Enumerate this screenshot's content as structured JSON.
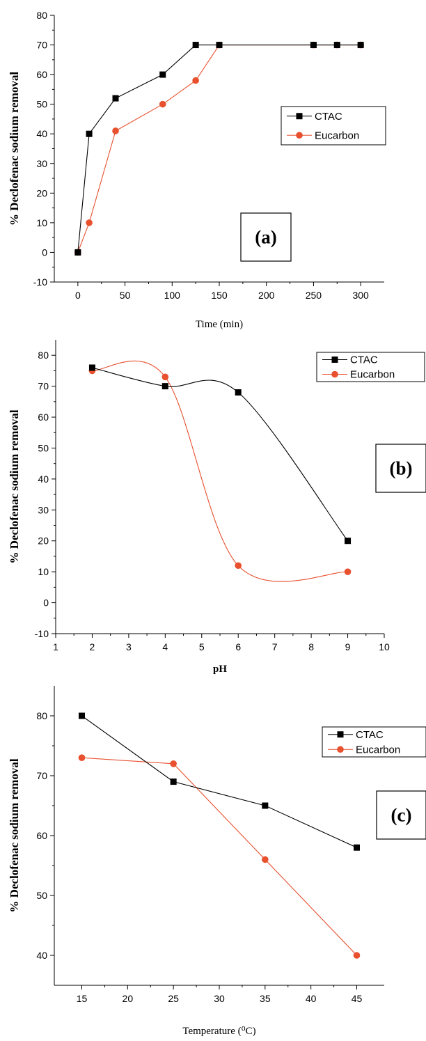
{
  "chart_data": [
    {
      "type": "line",
      "panel_label": "(a)",
      "xlabel": "Time (min)",
      "ylabel": "% Declofenac sodium removal",
      "xlim": [
        -25,
        325
      ],
      "ylim": [
        -10,
        80
      ],
      "xticks": [
        0,
        50,
        100,
        150,
        200,
        250,
        300
      ],
      "yticks": [
        -10,
        0,
        10,
        20,
        30,
        40,
        50,
        60,
        70,
        80
      ],
      "legend_position": "center-right",
      "grid": false,
      "series": [
        {
          "name": "CTAC",
          "marker": "square",
          "color": "#000000",
          "smooth": false,
          "x": [
            0,
            12,
            40,
            90,
            125,
            150,
            250,
            275,
            300
          ],
          "y": [
            0,
            40,
            52,
            60,
            70,
            70,
            70,
            70,
            70
          ]
        },
        {
          "name": "Eucarbon",
          "marker": "circle",
          "color": "#e8502e",
          "smooth": false,
          "x": [
            0,
            12,
            40,
            90,
            125,
            150,
            250,
            275,
            300
          ],
          "y": [
            0,
            10,
            41,
            50,
            58,
            70,
            70,
            70,
            70
          ]
        }
      ]
    },
    {
      "type": "line",
      "panel_label": "(b)",
      "xlabel": "pH",
      "ylabel": "% Declofenac sodium removal",
      "xlim": [
        1,
        10
      ],
      "ylim": [
        -10,
        85
      ],
      "xticks": [
        1,
        2,
        3,
        4,
        5,
        6,
        7,
        8,
        9,
        10
      ],
      "yticks": [
        -10,
        0,
        10,
        20,
        30,
        40,
        50,
        60,
        70,
        80
      ],
      "legend_position": "top-right",
      "grid": false,
      "series": [
        {
          "name": "CTAC",
          "marker": "square",
          "color": "#000000",
          "smooth": true,
          "x": [
            2,
            4,
            6,
            9
          ],
          "y": [
            76,
            70,
            68,
            20
          ]
        },
        {
          "name": "Eucarbon",
          "marker": "circle",
          "color": "#e8502e",
          "smooth": true,
          "x": [
            2,
            4,
            6,
            9
          ],
          "y": [
            75,
            73,
            12,
            10
          ]
        }
      ]
    },
    {
      "type": "line",
      "panel_label": "(c)",
      "xlabel": "Temperature (⁰C)",
      "ylabel": "% Declofenac sodium removal",
      "xlim": [
        12,
        48
      ],
      "ylim": [
        35,
        85
      ],
      "xticks": [
        15,
        20,
        25,
        30,
        35,
        40,
        45
      ],
      "yticks": [
        40,
        50,
        60,
        70,
        80
      ],
      "legend_position": "top-right",
      "grid": false,
      "series": [
        {
          "name": "CTAC",
          "marker": "square",
          "color": "#000000",
          "smooth": false,
          "x": [
            15,
            25,
            35,
            45
          ],
          "y": [
            80,
            69,
            65,
            58
          ]
        },
        {
          "name": "Eucarbon",
          "marker": "circle",
          "color": "#e8502e",
          "smooth": false,
          "x": [
            15,
            25,
            35,
            45
          ],
          "y": [
            73,
            72,
            56,
            40
          ]
        }
      ]
    }
  ]
}
